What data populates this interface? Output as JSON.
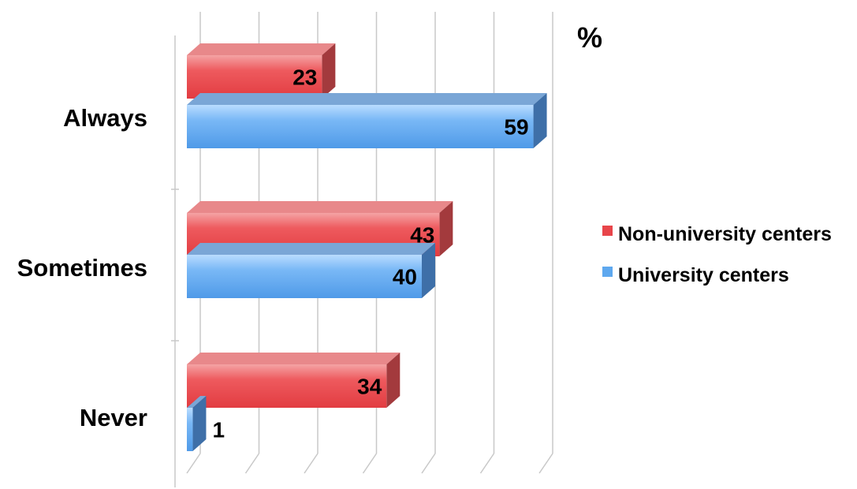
{
  "chart_data": {
    "type": "bar",
    "orientation": "horizontal",
    "style": "3d",
    "categories": [
      "Always",
      "Sometimes",
      "Never"
    ],
    "series": [
      {
        "name": "Non-university centers",
        "values": [
          23,
          43,
          34
        ],
        "color": "#e8454a",
        "top_color": "#e8888a",
        "side_color": "#a33a3d"
      },
      {
        "name": "University centers",
        "values": [
          59,
          40,
          1
        ],
        "color": "#5ea8ef",
        "top_color": "#7aa6d6",
        "side_color": "#3e6fa8"
      }
    ],
    "unit_label": "%",
    "xlim": [
      0,
      60
    ],
    "grid": true,
    "legend_position": "right",
    "data_labels": true
  }
}
